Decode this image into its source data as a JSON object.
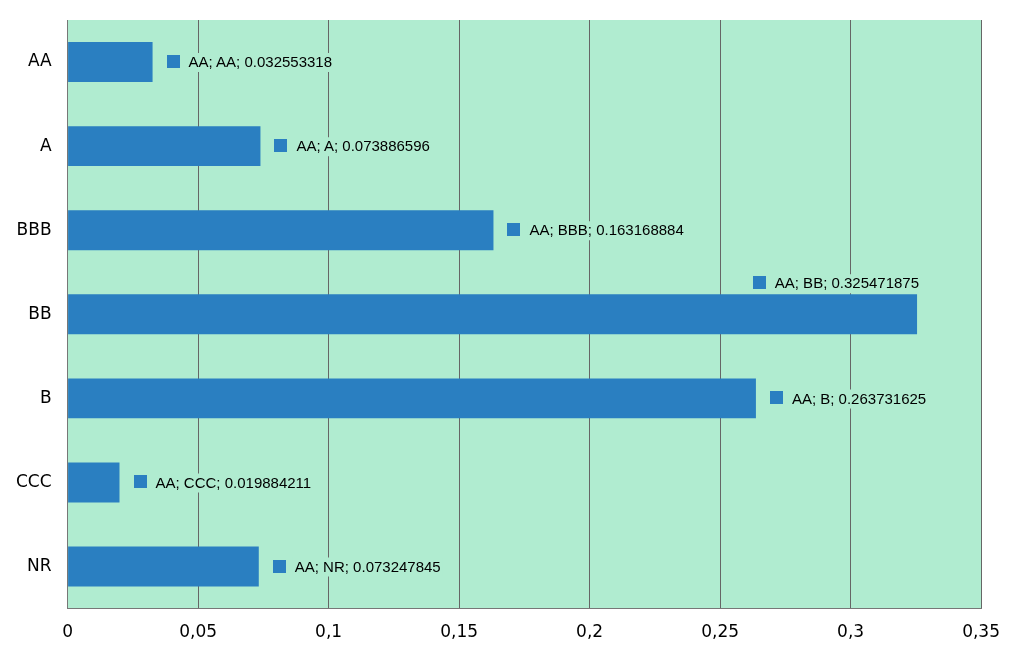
{
  "chart_data": {
    "type": "bar",
    "orientation": "horizontal",
    "categories": [
      "AA",
      "A",
      "BBB",
      "BB",
      "B",
      "CCC",
      "NR"
    ],
    "series": [
      {
        "color": "#2a7fc1",
        "values": [
          0.032553318,
          0.073886596,
          0.163168884,
          0.325471875,
          0.263731625,
          0.019884211,
          0.073247845
        ],
        "value_labels": [
          "AA; AA; 0.032553318",
          "AA; A; 0.073886596",
          "AA; BBB; 0.163168884",
          "AA; BB; 0.325471875",
          "AA; B; 0.263731625",
          "AA; CCC; 0.019884211",
          "AA; NR; 0.073247845"
        ]
      }
    ],
    "xlim": [
      0,
      0.35
    ],
    "xticks": [
      0,
      {
        "value": 0.05,
        "label": "0,05"
      },
      {
        "value": 0.1,
        "label": "0,1"
      },
      {
        "value": 0.15,
        "label": "0,15"
      },
      {
        "value": 0.2,
        "label": "0,2"
      },
      {
        "value": 0.25,
        "label": "0,25"
      },
      {
        "value": 0.3,
        "label": "0,3"
      },
      {
        "value": 0.35,
        "label": "0,35"
      }
    ],
    "grid": "x",
    "legend": false
  }
}
